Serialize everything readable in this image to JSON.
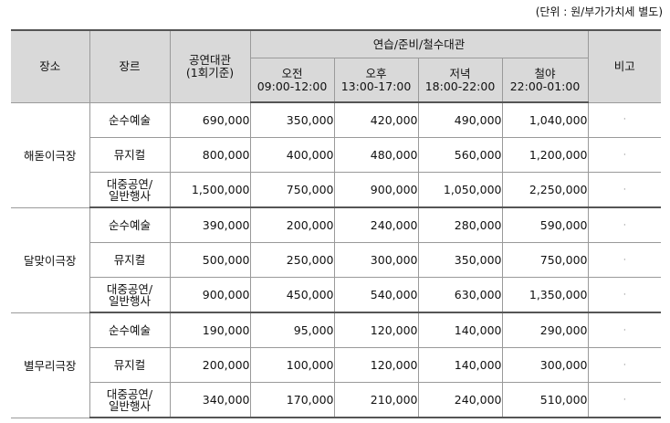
{
  "unit_note": "(단위 : 원/부가가치세 별도)",
  "headers": {
    "venue": "장소",
    "genre": "장르",
    "performance": "공연대관\n(1회기준)",
    "rehearsal_group": "연습/준비/철수대관",
    "note": "비고",
    "slots": [
      {
        "label": "오전",
        "time": "09:00-12:00"
      },
      {
        "label": "오후",
        "time": "13:00-17:00"
      },
      {
        "label": "저녁",
        "time": "18:00-22:00"
      },
      {
        "label": "철야",
        "time": "22:00-01:00"
      }
    ]
  },
  "venues": [
    {
      "name": "해돋이극장",
      "rows": [
        {
          "genre": "순수예술",
          "performance": "690,000",
          "morning": "350,000",
          "afternoon": "420,000",
          "evening": "490,000",
          "overnight": "1,040,000",
          "note": "·"
        },
        {
          "genre": "뮤지컬",
          "performance": "800,000",
          "morning": "400,000",
          "afternoon": "480,000",
          "evening": "560,000",
          "overnight": "1,200,000",
          "note": "·"
        },
        {
          "genre": "대중공연/\n일반행사",
          "performance": "1,500,000",
          "morning": "750,000",
          "afternoon": "900,000",
          "evening": "1,050,000",
          "overnight": "2,250,000",
          "note": "·"
        }
      ]
    },
    {
      "name": "달맞이극장",
      "rows": [
        {
          "genre": "순수예술",
          "performance": "390,000",
          "morning": "200,000",
          "afternoon": "240,000",
          "evening": "280,000",
          "overnight": "590,000",
          "note": "·"
        },
        {
          "genre": "뮤지컬",
          "performance": "500,000",
          "morning": "250,000",
          "afternoon": "300,000",
          "evening": "350,000",
          "overnight": "750,000",
          "note": "·"
        },
        {
          "genre": "대중공연/\n일반행사",
          "performance": "900,000",
          "morning": "450,000",
          "afternoon": "540,000",
          "evening": "630,000",
          "overnight": "1,350,000",
          "note": "·"
        }
      ]
    },
    {
      "name": "별무리극장",
      "rows": [
        {
          "genre": "순수예술",
          "performance": "190,000",
          "morning": "95,000",
          "afternoon": "120,000",
          "evening": "140,000",
          "overnight": "290,000",
          "note": "·"
        },
        {
          "genre": "뮤지컬",
          "performance": "200,000",
          "morning": "100,000",
          "afternoon": "120,000",
          "evening": "140,000",
          "overnight": "300,000",
          "note": "·"
        },
        {
          "genre": "대중공연/\n일반행사",
          "performance": "340,000",
          "morning": "170,000",
          "afternoon": "210,000",
          "evening": "240,000",
          "overnight": "510,000",
          "note": "·"
        }
      ]
    }
  ]
}
